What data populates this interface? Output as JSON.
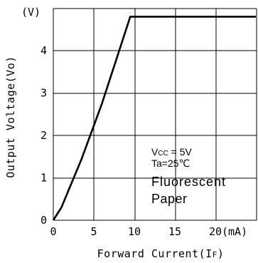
{
  "chart_data": {
    "type": "line",
    "xlabel": "Forward Current(I",
    "xlabel_sub": "F",
    "xlabel_close": ")",
    "ylabel": "Output Voltage(Vo)",
    "x_unit": "(mA)",
    "y_unit": "(V)",
    "xlim": [
      0,
      25
    ],
    "ylim": [
      0,
      5
    ],
    "x_ticks": [
      "0",
      "5",
      "10",
      "15",
      "20"
    ],
    "x_tick_values": [
      0,
      5,
      10,
      15,
      20
    ],
    "y_ticks": [
      "0",
      "1",
      "2",
      "3",
      "4"
    ],
    "y_tick_values": [
      0,
      1,
      2,
      3,
      4
    ],
    "grid": true,
    "series": [
      {
        "x": [
          0,
          1,
          3.5,
          6,
          9.5,
          25
        ],
        "y": [
          0,
          0.3,
          1.45,
          2.75,
          4.8,
          4.8
        ]
      }
    ],
    "annotations": {
      "vcc_sym": "V",
      "vcc_sub": "CC",
      "vcc_rest": " = 5V",
      "ta": "Ta=25℃",
      "line3": "Fluorescent",
      "line4": "Paper"
    }
  }
}
